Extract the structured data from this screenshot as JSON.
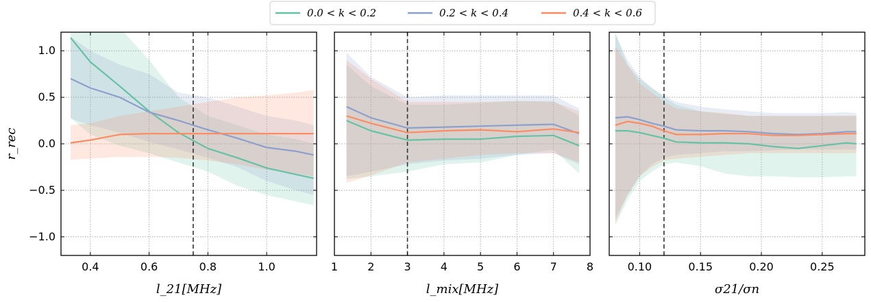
{
  "chart_data": {
    "type": "line",
    "legend": {
      "placement": "top-center",
      "entries": [
        {
          "label": "0.0 < k < 0.2",
          "color": "#66c2a5"
        },
        {
          "label": "0.2 < k < 0.4",
          "color": "#8da0cb"
        },
        {
          "label": "0.4 < k < 0.6",
          "color": "#fc8d62"
        }
      ]
    },
    "ylabel": "r_rec",
    "ylim": [
      -1.2,
      1.2
    ],
    "yticks": [
      -1.0,
      -0.5,
      0.0,
      0.5,
      1.0
    ],
    "ytick_labels": [
      "−1.0",
      "−0.5",
      "0.0",
      "0.5",
      "1.0"
    ],
    "grid": true,
    "panels": [
      {
        "xlabel": "l_21[MHz]",
        "xlim": [
          0.3,
          1.17
        ],
        "xticks": [
          0.4,
          0.6,
          0.8,
          1.0
        ],
        "xtick_labels": [
          "0.4",
          "0.6",
          "0.8",
          "1.0"
        ],
        "vline": 0.75,
        "x": [
          0.333,
          0.4,
          0.5,
          0.6,
          0.7,
          0.8,
          0.9,
          1.0,
          1.1,
          1.16
        ],
        "series": [
          {
            "values": [
              1.14,
              0.88,
              0.62,
              0.35,
              0.12,
              -0.05,
              -0.15,
              -0.26,
              -0.33,
              -0.37
            ],
            "lower": [
              0.28,
              0.1,
              -0.02,
              -0.1,
              -0.2,
              -0.3,
              -0.45,
              -0.55,
              -0.62,
              -0.66
            ],
            "upper": [
              1.25,
              1.25,
              1.25,
              0.9,
              0.5,
              0.3,
              0.2,
              0.1,
              0.05,
              0.0
            ]
          },
          {
            "values": [
              0.7,
              0.6,
              0.5,
              0.34,
              0.25,
              0.15,
              0.06,
              -0.04,
              -0.08,
              -0.12
            ],
            "lower": [
              0.27,
              0.2,
              0.12,
              0.02,
              -0.06,
              -0.15,
              -0.25,
              -0.4,
              -0.5,
              -0.55
            ],
            "upper": [
              1.15,
              1.0,
              0.85,
              0.75,
              0.55,
              0.5,
              0.4,
              0.3,
              0.25,
              0.2
            ]
          },
          {
            "values": [
              0.01,
              0.04,
              0.1,
              0.11,
              0.11,
              0.11,
              0.11,
              0.11,
              0.11,
              0.11
            ],
            "lower": [
              -0.17,
              -0.16,
              -0.14,
              -0.14,
              -0.15,
              -0.18,
              -0.22,
              -0.28,
              -0.32,
              -0.35
            ],
            "upper": [
              0.2,
              0.22,
              0.3,
              0.35,
              0.4,
              0.45,
              0.5,
              0.52,
              0.55,
              0.58
            ]
          }
        ]
      },
      {
        "xlabel": "l_mix[MHz]",
        "xlim": [
          1,
          8
        ],
        "xticks": [
          1,
          2,
          3,
          4,
          5,
          6,
          7,
          8
        ],
        "xtick_labels": [
          "1",
          "2",
          "3",
          "4",
          "5",
          "6",
          "7",
          "8"
        ],
        "vline": 3,
        "x": [
          1.33,
          2,
          3,
          4,
          5,
          6,
          7,
          7.7
        ],
        "series": [
          {
            "values": [
              0.25,
              0.14,
              0.04,
              0.05,
              0.05,
              0.08,
              0.09,
              -0.02
            ],
            "lower": [
              -0.38,
              -0.35,
              -0.3,
              -0.22,
              -0.2,
              -0.12,
              -0.06,
              -0.32
            ],
            "upper": [
              0.85,
              0.62,
              0.42,
              0.42,
              0.44,
              0.46,
              0.46,
              0.3
            ]
          },
          {
            "values": [
              0.4,
              0.28,
              0.17,
              0.18,
              0.19,
              0.2,
              0.21,
              0.11
            ],
            "lower": [
              -0.35,
              -0.3,
              -0.22,
              -0.18,
              -0.16,
              -0.12,
              -0.1,
              -0.22
            ],
            "upper": [
              0.98,
              0.72,
              0.5,
              0.52,
              0.52,
              0.52,
              0.52,
              0.38
            ]
          },
          {
            "values": [
              0.3,
              0.22,
              0.12,
              0.14,
              0.15,
              0.13,
              0.16,
              0.12
            ],
            "lower": [
              -0.42,
              -0.34,
              -0.2,
              -0.16,
              -0.12,
              -0.1,
              -0.1,
              -0.2
            ],
            "upper": [
              0.9,
              0.7,
              0.45,
              0.45,
              0.45,
              0.46,
              0.45,
              0.35
            ]
          }
        ]
      },
      {
        "xlabel": "σ21/σn",
        "xlim": [
          0.075,
          0.285
        ],
        "xticks": [
          0.1,
          0.15,
          0.2,
          0.25
        ],
        "xtick_labels": [
          "0.10",
          "0.15",
          "0.20",
          "0.25"
        ],
        "vline": 0.12,
        "x": [
          0.08,
          0.09,
          0.1,
          0.11,
          0.12,
          0.13,
          0.15,
          0.17,
          0.19,
          0.21,
          0.23,
          0.25,
          0.27,
          0.278
        ],
        "series": [
          {
            "values": [
              0.14,
              0.14,
              0.12,
              0.09,
              0.06,
              0.02,
              0.01,
              0.01,
              0.0,
              -0.03,
              -0.05,
              -0.02,
              0.01,
              0.0
            ],
            "lower": [
              -0.88,
              -0.6,
              -0.4,
              -0.3,
              -0.22,
              -0.2,
              -0.24,
              -0.32,
              -0.35,
              -0.35,
              -0.36,
              -0.36,
              -0.35,
              -0.35
            ],
            "upper": [
              1.2,
              0.85,
              0.7,
              0.6,
              0.5,
              0.42,
              0.35,
              0.32,
              0.3,
              0.3,
              0.3,
              0.3,
              0.3,
              0.3
            ]
          },
          {
            "values": [
              0.28,
              0.29,
              0.26,
              0.22,
              0.19,
              0.15,
              0.14,
              0.14,
              0.13,
              0.11,
              0.1,
              0.11,
              0.13,
              0.13
            ],
            "lower": [
              -0.8,
              -0.55,
              -0.35,
              -0.22,
              -0.15,
              -0.12,
              -0.1,
              -0.08,
              -0.08,
              -0.07,
              -0.06,
              -0.06,
              -0.06,
              -0.06
            ],
            "upper": [
              1.18,
              0.9,
              0.72,
              0.6,
              0.52,
              0.45,
              0.4,
              0.37,
              0.35,
              0.33,
              0.33,
              0.33,
              0.34,
              0.33
            ]
          },
          {
            "values": [
              0.2,
              0.24,
              0.22,
              0.19,
              0.14,
              0.1,
              0.1,
              0.11,
              0.11,
              0.09,
              0.09,
              0.1,
              0.11,
              0.11
            ],
            "lower": [
              -0.85,
              -0.55,
              -0.35,
              -0.25,
              -0.18,
              -0.16,
              -0.14,
              -0.12,
              -0.1,
              -0.1,
              -0.1,
              -0.1,
              -0.1,
              -0.1
            ],
            "upper": [
              1.05,
              0.85,
              0.65,
              0.55,
              0.45,
              0.38,
              0.35,
              0.33,
              0.3,
              0.3,
              0.3,
              0.3,
              0.3,
              0.3
            ]
          }
        ]
      }
    ]
  }
}
